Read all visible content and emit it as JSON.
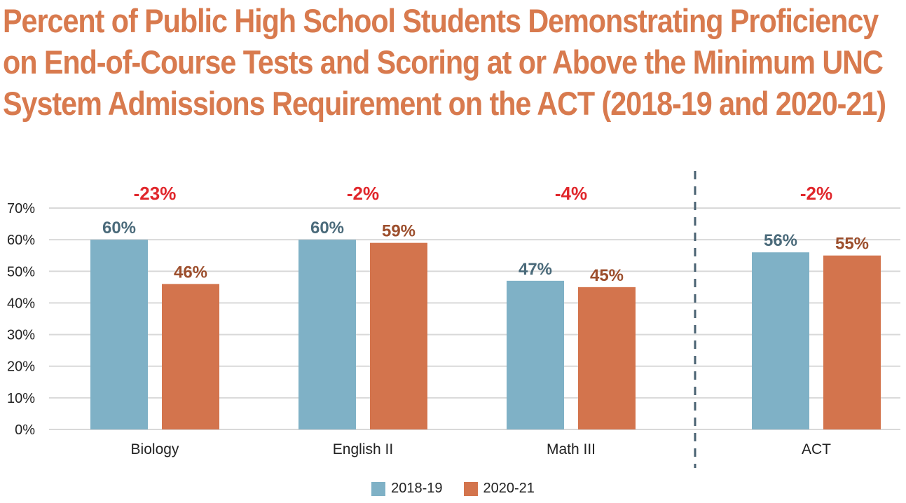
{
  "title": "Percent of Public High School Students Demonstrating Proficiency on End-of-Course Tests and Scoring at or Above the Minimum UNC System Admissions Requirement on the ACT (2018-19 and 2020-21)",
  "colors": {
    "title": "#d87a4e",
    "series_2018": "#7fb1c6",
    "series_2020": "#d3744d",
    "label_2018": "#4a6a7a",
    "label_2020": "#9c4e2c",
    "change": "#e0262b",
    "grid": "#d9d9d9",
    "divider": "#4a6272"
  },
  "chart_data": {
    "type": "bar",
    "title": "Percent of Public High School Students Demonstrating Proficiency on End-of-Course Tests and Scoring at or Above the Minimum UNC System Admissions Requirement on the ACT (2018-19 and 2020-21)",
    "categories": [
      "Biology",
      "English II",
      "Math III",
      "ACT"
    ],
    "series": [
      {
        "name": "2018-19",
        "values": [
          60,
          60,
          47,
          56
        ],
        "labels": [
          "60%",
          "60%",
          "47%",
          "56%"
        ]
      },
      {
        "name": "2020-21",
        "values": [
          46,
          59,
          45,
          55
        ],
        "labels": [
          "46%",
          "59%",
          "45%",
          "55%"
        ]
      }
    ],
    "changes": [
      "-23%",
      "-2%",
      "-4%",
      "-2%"
    ],
    "ylim": [
      0,
      70
    ],
    "yticks": [
      "0%",
      "10%",
      "20%",
      "30%",
      "40%",
      "50%",
      "60%",
      "70%"
    ],
    "grid": true,
    "legend_position": "bottom-center",
    "xlabel": "",
    "ylabel": ""
  },
  "legend": [
    {
      "label": "2018-19",
      "color": "#7fb1c6"
    },
    {
      "label": "2020-21",
      "color": "#d3744d"
    }
  ]
}
